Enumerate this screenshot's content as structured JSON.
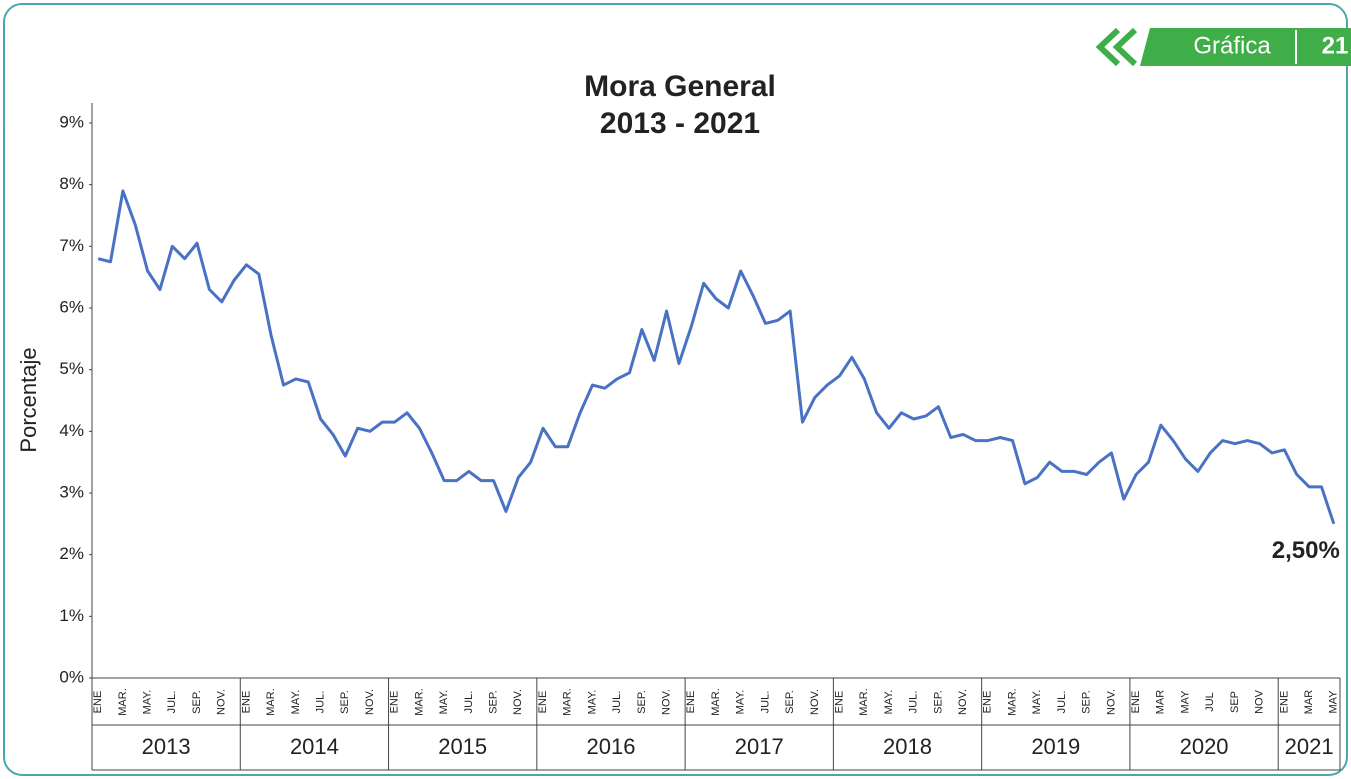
{
  "header": {
    "label": "Gráfica",
    "number": "21"
  },
  "chart_data": {
    "type": "line",
    "title": "Mora General",
    "subtitle": "2013 - 2021",
    "y_label": "Porcentaje",
    "categories": [
      "ENE",
      null,
      "MAR.",
      null,
      "MAY.",
      null,
      "JUL.",
      null,
      "SEP.",
      null,
      "NOV.",
      null,
      "ENE",
      null,
      "MAR.",
      null,
      "MAY.",
      null,
      "JUL.",
      null,
      "SEP.",
      null,
      "NOV.",
      null,
      "ENE",
      null,
      "MAR.",
      null,
      "MAY.",
      null,
      "JUL.",
      null,
      "SEP.",
      null,
      "NOV.",
      null,
      "ENE",
      null,
      "MAR.",
      null,
      "MAY.",
      null,
      "JUL.",
      null,
      "SEP.",
      null,
      "NOV.",
      null,
      "ENE",
      null,
      "MAR.",
      null,
      "MAY.",
      null,
      "JUL.",
      null,
      "SEP.",
      null,
      "NOV.",
      null,
      "ENE",
      null,
      "MAR.",
      null,
      "MAY.",
      null,
      "JUL.",
      null,
      "SEP.",
      null,
      "NOV.",
      null,
      "ENE",
      null,
      "MAR.",
      null,
      "MAY.",
      null,
      "JUL.",
      null,
      "SEP.",
      null,
      "NOV.",
      null,
      "ENE",
      null,
      "MAR",
      null,
      "MAY",
      null,
      "JUL",
      null,
      "SEP",
      null,
      "NOV",
      null,
      "ENE",
      null,
      "MAR",
      null,
      "MAY"
    ],
    "years": [
      "2013",
      "2014",
      "2015",
      "2016",
      "2017",
      "2018",
      "2019",
      "2020",
      "2021"
    ],
    "series": [
      {
        "name": "Mora General",
        "color": "#4a72c4",
        "values": [
          6.8,
          6.75,
          7.9,
          7.35,
          6.6,
          6.3,
          7.0,
          6.8,
          7.05,
          6.3,
          6.1,
          6.45,
          6.7,
          6.55,
          5.55,
          4.75,
          4.85,
          4.8,
          4.2,
          3.95,
          3.6,
          4.05,
          4.0,
          4.15,
          4.15,
          4.3,
          4.05,
          3.65,
          3.2,
          3.2,
          3.35,
          3.2,
          3.2,
          2.7,
          3.25,
          3.5,
          4.05,
          3.75,
          3.75,
          4.3,
          4.75,
          4.7,
          4.85,
          4.95,
          5.65,
          5.15,
          5.95,
          5.1,
          5.7,
          6.4,
          6.15,
          6.0,
          6.6,
          6.2,
          5.75,
          5.8,
          5.95,
          4.15,
          4.55,
          4.75,
          4.9,
          5.2,
          4.85,
          4.3,
          4.05,
          4.3,
          4.2,
          4.25,
          4.4,
          3.9,
          3.95,
          3.85,
          3.85,
          3.9,
          3.85,
          3.15,
          3.25,
          3.5,
          3.35,
          3.35,
          3.3,
          3.5,
          3.65,
          2.9,
          3.3,
          3.5,
          4.1,
          3.85,
          3.55,
          3.35,
          3.65,
          3.85,
          3.8,
          3.85,
          3.8,
          3.65,
          3.7,
          3.3,
          3.1,
          3.1,
          2.5
        ],
        "value_labels": [
          null,
          null,
          null,
          null,
          null,
          null,
          null,
          null,
          null,
          null,
          null,
          null,
          null,
          null,
          null,
          null,
          null,
          null,
          null,
          null,
          null,
          null,
          null,
          null,
          null,
          null,
          null,
          null,
          null,
          null,
          null,
          null,
          null,
          null,
          null,
          null,
          null,
          null,
          null,
          null,
          null,
          null,
          null,
          null,
          null,
          null,
          null,
          null,
          null,
          null,
          null,
          null,
          null,
          null,
          null,
          null,
          null,
          null,
          null,
          null,
          null,
          null,
          null,
          null,
          null,
          null,
          null,
          null,
          null,
          null,
          null,
          null,
          null,
          null,
          null,
          null,
          null,
          null,
          null,
          null,
          null,
          null,
          null,
          null,
          null,
          null,
          null,
          null,
          null,
          null,
          null,
          null,
          null,
          null,
          null,
          null,
          null,
          null,
          null,
          null,
          "2,50%"
        ]
      }
    ],
    "ylim": [
      0,
      9
    ],
    "yticks": [
      {
        "value": 0,
        "label": "0%"
      },
      {
        "value": 1,
        "label": "1%"
      },
      {
        "value": 2,
        "label": "2%"
      },
      {
        "value": 3,
        "label": "3%"
      },
      {
        "value": 4,
        "label": "4%"
      },
      {
        "value": 5,
        "label": "5%"
      },
      {
        "value": 6,
        "label": "6%"
      },
      {
        "value": 7,
        "label": "7%"
      },
      {
        "value": 8,
        "label": "8%"
      },
      {
        "value": 9,
        "label": "9%"
      }
    ],
    "grid": false
  }
}
